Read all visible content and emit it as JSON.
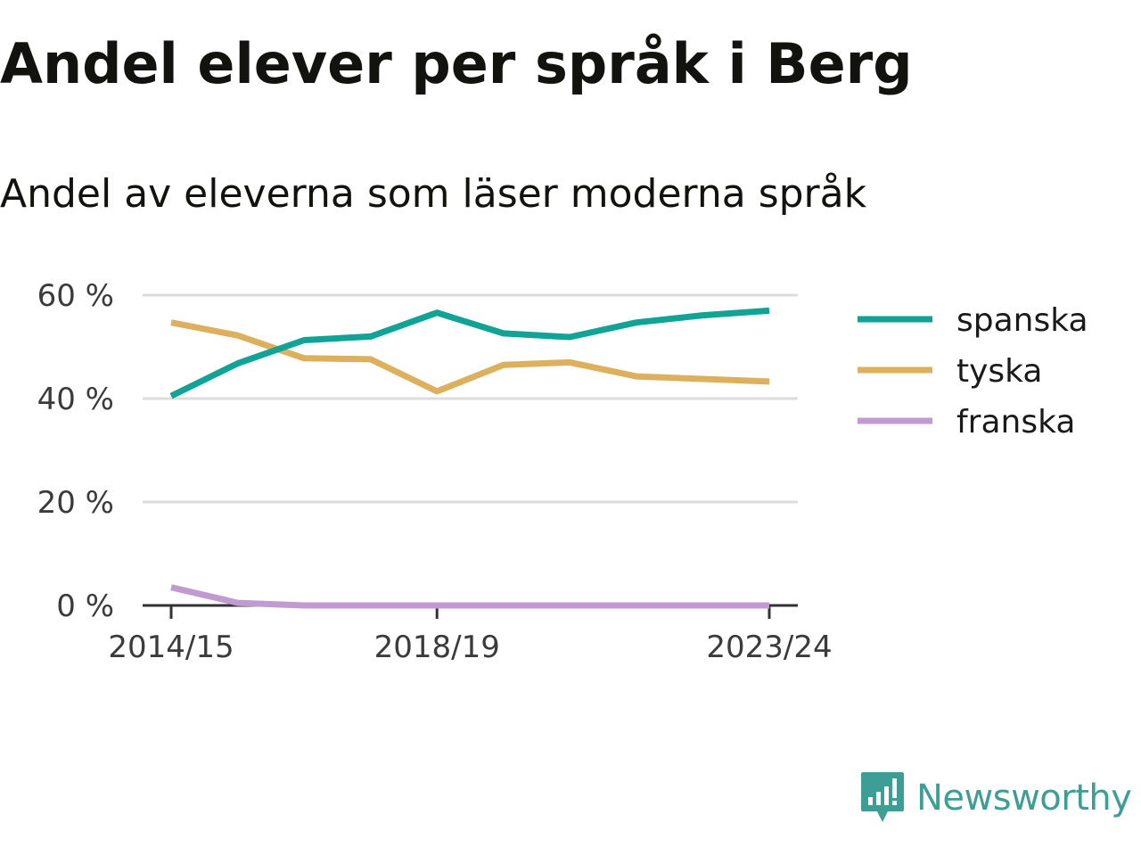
{
  "title": "Andel elever per språk i Berg",
  "subtitle": "Andel av eleverna som läser moderna språk",
  "brand": {
    "name": "Newsworthy",
    "color": "#3d9e95"
  },
  "chart_data": {
    "type": "line",
    "x": [
      "2014/15",
      "2015/16",
      "2016/17",
      "2017/18",
      "2018/19",
      "2019/20",
      "2020/21",
      "2021/22",
      "2022/23",
      "2023/24"
    ],
    "x_tick_labels": [
      "2014/15",
      "2018/19",
      "2023/24"
    ],
    "y_ticks": [
      0,
      20,
      40,
      60
    ],
    "y_tick_labels": [
      "0 %",
      "20 %",
      "40 %",
      "60 %"
    ],
    "ylim": [
      0,
      60
    ],
    "grid": true,
    "legend_position": "right",
    "series": [
      {
        "name": "spanska",
        "color": "#10a396",
        "values": [
          40.5,
          46.8,
          51.3,
          52.0,
          56.6,
          52.6,
          51.9,
          54.7,
          56.1,
          57.0
        ]
      },
      {
        "name": "tyska",
        "color": "#dcb05c",
        "values": [
          54.7,
          52.2,
          47.8,
          47.6,
          41.4,
          46.5,
          47.0,
          44.3,
          43.8,
          43.3
        ]
      },
      {
        "name": "franska",
        "color": "#c09ad0",
        "values": [
          3.5,
          0.5,
          0,
          0,
          0,
          0,
          0,
          0,
          0,
          0
        ]
      }
    ]
  }
}
